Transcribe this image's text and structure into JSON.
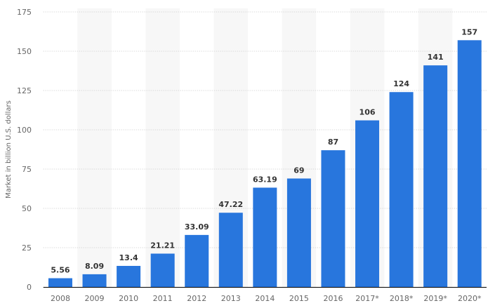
{
  "chart_data": {
    "type": "bar",
    "title": "",
    "xlabel": "",
    "ylabel": "Market in billion U.S. dollars",
    "categories": [
      "2008",
      "2009",
      "2010",
      "2011",
      "2012",
      "2013",
      "2014",
      "2015",
      "2016",
      "2017*",
      "2018*",
      "2019*",
      "2020*"
    ],
    "values": [
      5.56,
      8.09,
      13.4,
      21.21,
      33.09,
      47.22,
      63.19,
      69,
      87,
      106,
      124,
      141,
      157
    ],
    "data_labels": [
      "5.56",
      "8.09",
      "13.4",
      "21.21",
      "33.09",
      "47.22",
      "63.19",
      "69",
      "87",
      "106",
      "124",
      "141",
      "157"
    ],
    "ylim": [
      0,
      175
    ],
    "yticks": [
      0,
      25,
      50,
      75,
      100,
      125,
      150,
      175
    ],
    "grid": true,
    "alternating_column_bands": true,
    "colors": {
      "bar": "#2876dd",
      "band": "#f7f7f7",
      "grid": "#cccccc",
      "axis": "#000000"
    }
  }
}
